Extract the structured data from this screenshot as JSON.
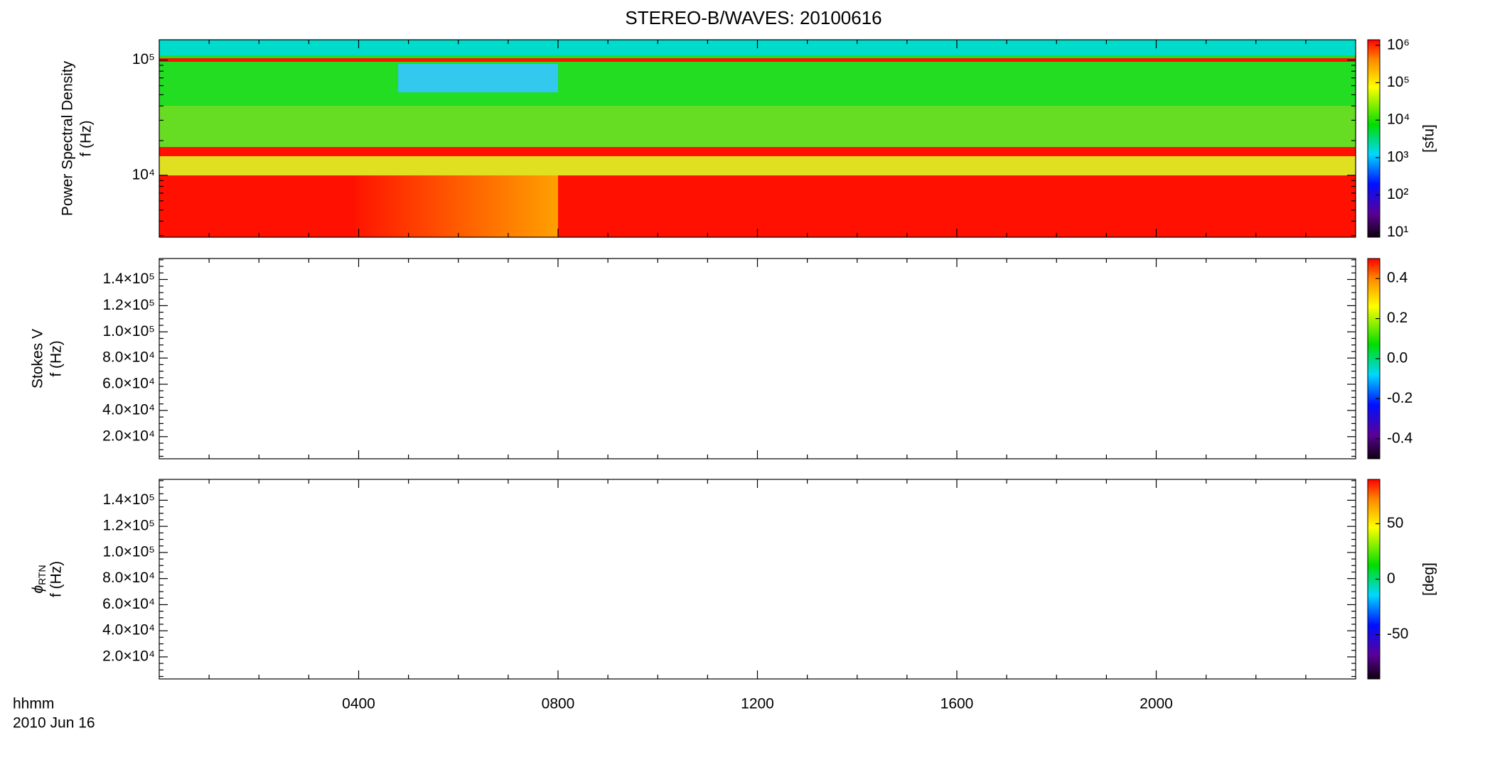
{
  "title": "STEREO-B/WAVES: 20100616",
  "x_axis": {
    "label": [
      "hhmm",
      "2010 Jun 16"
    ],
    "xlim": [
      0,
      24
    ],
    "xticks": [
      {
        "value": 4,
        "label": "0400"
      },
      {
        "value": 8,
        "label": "0800"
      },
      {
        "value": 12,
        "label": "1200"
      },
      {
        "value": 16,
        "label": "1600"
      },
      {
        "value": 20,
        "label": "2000"
      }
    ],
    "xminor_ticks": [
      1,
      2,
      3,
      5,
      6,
      7,
      9,
      10,
      11,
      13,
      14,
      15,
      17,
      18,
      19,
      21,
      22,
      23
    ]
  },
  "chart_data": [
    {
      "type": "spectrogram",
      "ylabel": [
        "Power Spectral Density",
        "f (Hz)"
      ],
      "yscale": "log",
      "ylim": [
        2900,
        150000
      ],
      "yticks": [
        {
          "value": 10000,
          "label": "10⁴"
        },
        {
          "value": 100000,
          "label": "10⁵"
        }
      ],
      "yminor_ticks": [
        3000,
        4000,
        5000,
        6000,
        7000,
        8000,
        9000,
        20000,
        30000,
        40000,
        50000,
        60000,
        70000,
        80000,
        90000
      ],
      "colorbar": {
        "label": "[sfu]",
        "scale": "log",
        "lim": [
          7.5,
          1400000
        ],
        "ticks": [
          {
            "value": 10,
            "label": "10¹"
          },
          {
            "value": 100,
            "label": "10²"
          },
          {
            "value": 1000,
            "label": "10³"
          },
          {
            "value": 10000,
            "label": "10⁴"
          },
          {
            "value": 100000,
            "label": "10⁵"
          },
          {
            "value": 1000000,
            "label": "10⁶"
          }
        ]
      }
    },
    {
      "type": "spectrogram",
      "ylabel": [
        "Stokes V",
        "f (Hz)"
      ],
      "yscale": "linear",
      "ylim": [
        3100,
        156000
      ],
      "yticks": [
        {
          "value": 20000,
          "label": "2.0×10⁴"
        },
        {
          "value": 40000,
          "label": "4.0×10⁴"
        },
        {
          "value": 60000,
          "label": "6.0×10⁴"
        },
        {
          "value": 80000,
          "label": "8.0×10⁴"
        },
        {
          "value": 100000,
          "label": "1.0×10⁵"
        },
        {
          "value": 120000,
          "label": "1.2×10⁵"
        },
        {
          "value": 140000,
          "label": "1.4×10⁵"
        }
      ],
      "yminor_ticks": [
        5000,
        10000,
        15000,
        25000,
        30000,
        35000,
        45000,
        50000,
        55000,
        65000,
        70000,
        75000,
        85000,
        90000,
        95000,
        105000,
        110000,
        115000,
        125000,
        130000,
        135000,
        145000,
        150000,
        155000
      ],
      "colorbar": {
        "scale": "linear",
        "lim": [
          -0.5,
          0.5
        ],
        "ticks": [
          0.4,
          0.2,
          {
            "value": 0,
            "label": "0.0"
          },
          -0.2,
          -0.4
        ]
      }
    },
    {
      "type": "spectrogram",
      "ylabel": [
        {
          "text": "ϕ",
          "sub": "RTN"
        },
        "f (Hz)"
      ],
      "yscale": "linear",
      "ylim": [
        3100,
        156000
      ],
      "yticks": [
        {
          "value": 20000,
          "label": "2.0×10⁴"
        },
        {
          "value": 40000,
          "label": "4.0×10⁴"
        },
        {
          "value": 60000,
          "label": "6.0×10⁴"
        },
        {
          "value": 80000,
          "label": "8.0×10⁴"
        },
        {
          "value": 100000,
          "label": "1.0×10⁵"
        },
        {
          "value": 120000,
          "label": "1.2×10⁵"
        },
        {
          "value": 140000,
          "label": "1.4×10⁵"
        }
      ],
      "yminor_ticks": [
        5000,
        10000,
        15000,
        25000,
        30000,
        35000,
        45000,
        50000,
        55000,
        65000,
        70000,
        75000,
        85000,
        90000,
        95000,
        105000,
        110000,
        115000,
        125000,
        130000,
        135000,
        145000,
        150000,
        155000
      ],
      "colorbar": {
        "label": "[deg]",
        "scale": "linear",
        "lim": [
          -90,
          90
        ],
        "ticks": [
          50,
          0,
          -50
        ]
      }
    }
  ]
}
